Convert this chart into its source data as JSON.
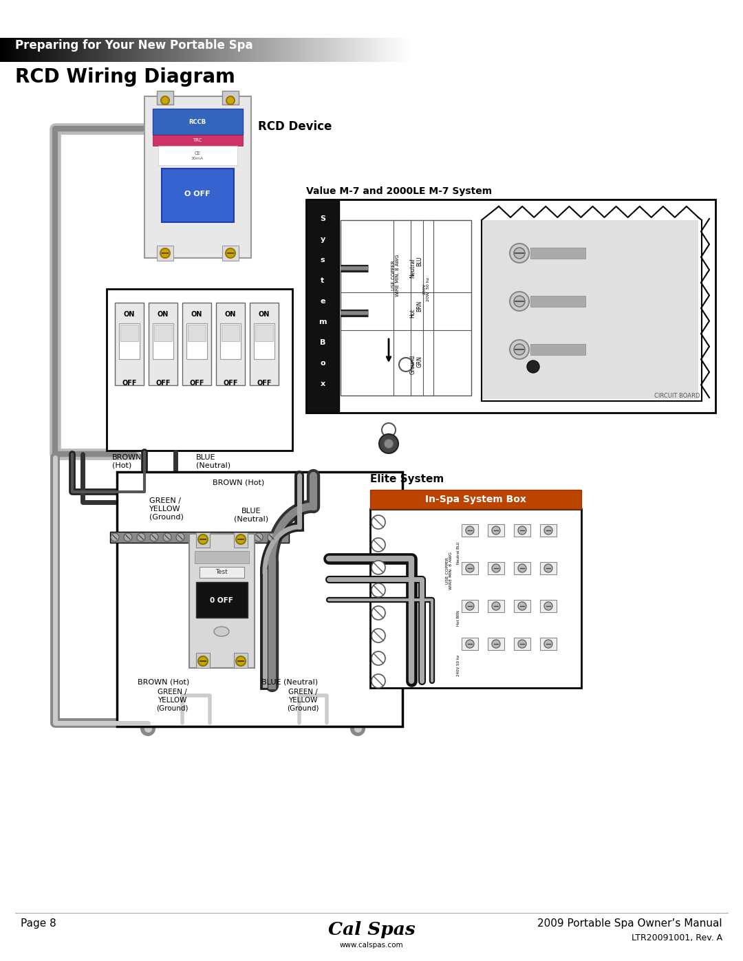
{
  "page_width": 10.8,
  "page_height": 13.97,
  "dpi": 100,
  "bg": "#ffffff",
  "header_text": "Preparing for Your New Portable Spa",
  "title_text": "RCD Wiring Diagram",
  "rcd_label": "RCD Device",
  "sys_label": "Value M-7 and 2000LE M-7 System",
  "elite_label": "Elite System",
  "inspa_label": "In-Spa System Box",
  "footer_left": "Page 8",
  "footer_url": "www.calspas.com",
  "footer_right1": "2009 Portable Spa Owner’s Manual",
  "footer_right2": "LTR20091001, Rev. A",
  "lbl_brown_hot": "BROWN\n(Hot)",
  "lbl_blue_neutral": "BLUE\n(Neutral)",
  "lbl_green_yellow": "GREEN /\nYELLOW\n(Ground)",
  "lbl_brown_hot2": "BROWN (Hot)",
  "lbl_blue_neutral2": "BLUE\n(Neutral)",
  "lbl_brown_hot3": "BROWN (Hot)",
  "lbl_blue_neutral3": "BLUE (Neutral)",
  "lbl_green_yellow2": "GREEN /\nYELLOW\n(Ground)",
  "lbl_green_yellow3": "GREEN /\nYELLOW\n(Ground)"
}
